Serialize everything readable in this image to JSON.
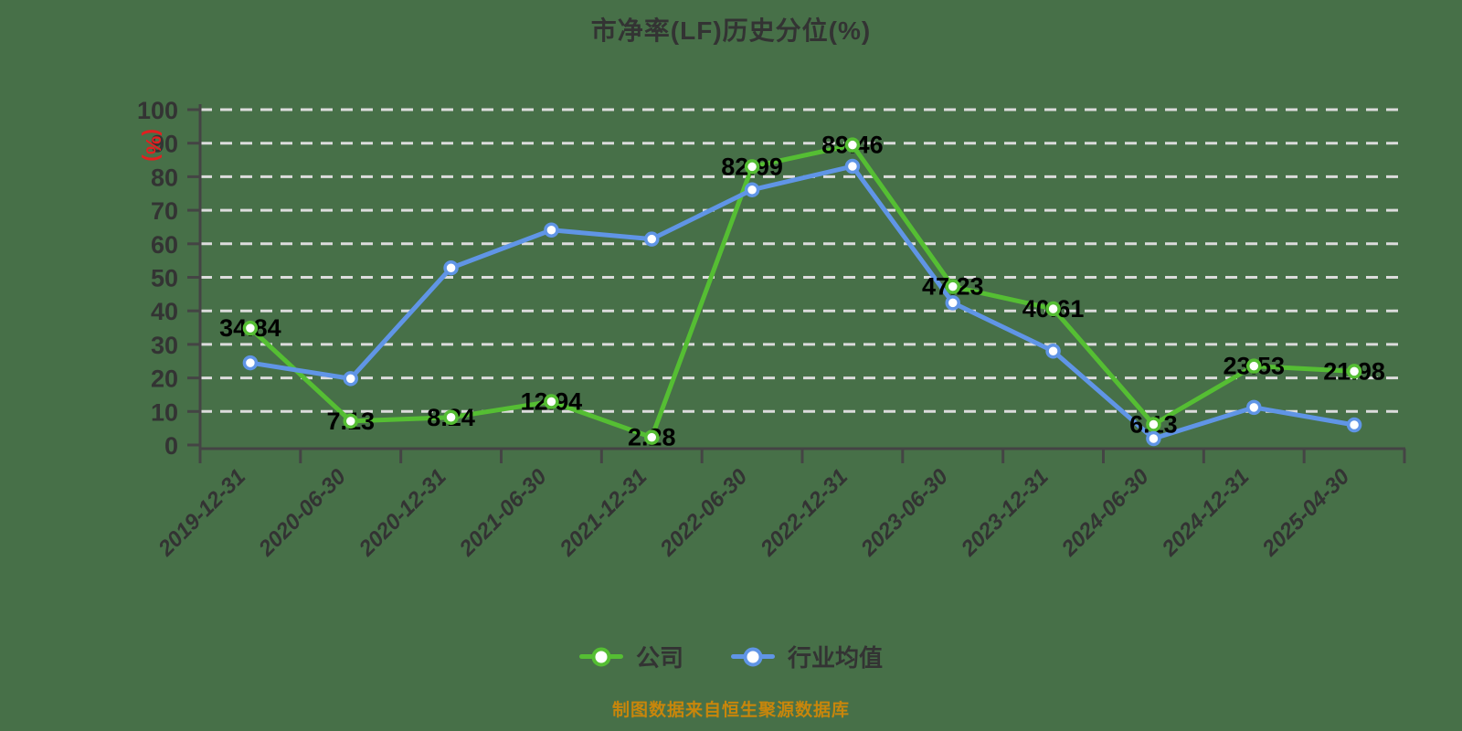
{
  "title": "市净率(LF)历史分位(%)",
  "y_axis_name": "(%)",
  "footer": "制图数据来自恒生聚源数据库",
  "colors": {
    "background": "#477048",
    "title": "#333333",
    "axis": "#444444",
    "grid": "#DCDCDC",
    "tick_label": "#333333",
    "data_label": "#000000",
    "axis_name": "#E02020",
    "footer": "#C8860B",
    "point_fill": "#FFFFFF",
    "company_series": "#55BE33",
    "industry_series": "#6095E6"
  },
  "chart_data": {
    "type": "line",
    "title": "市净率(LF)历史分位(%)",
    "xlabel": "",
    "ylabel": "(%)",
    "ylim": [
      0,
      100
    ],
    "ytick_step": 10,
    "yticks": [
      0,
      10,
      20,
      30,
      40,
      50,
      60,
      70,
      80,
      90,
      100
    ],
    "grid": "horizontal dashed",
    "legend_position": "bottom",
    "categories": [
      "2019-12-31",
      "2020-06-30",
      "2020-12-31",
      "2021-06-30",
      "2021-12-31",
      "2022-06-30",
      "2022-12-31",
      "2023-06-30",
      "2023-12-31",
      "2024-06-30",
      "2024-12-31",
      "2025-04-30"
    ],
    "series": [
      {
        "name": "公司",
        "color": "#55BE33",
        "labels_shown": true,
        "values": [
          34.84,
          7.13,
          8.24,
          12.94,
          2.28,
          82.99,
          89.46,
          47.23,
          40.61,
          6.13,
          23.53,
          21.98
        ]
      },
      {
        "name": "行业均值",
        "color": "#6095E6",
        "labels_shown": false,
        "values": [
          24.5,
          19.8,
          52.8,
          64.1,
          61.4,
          76.1,
          83.1,
          42.4,
          28.0,
          1.9,
          11.2,
          6.0
        ]
      }
    ]
  }
}
